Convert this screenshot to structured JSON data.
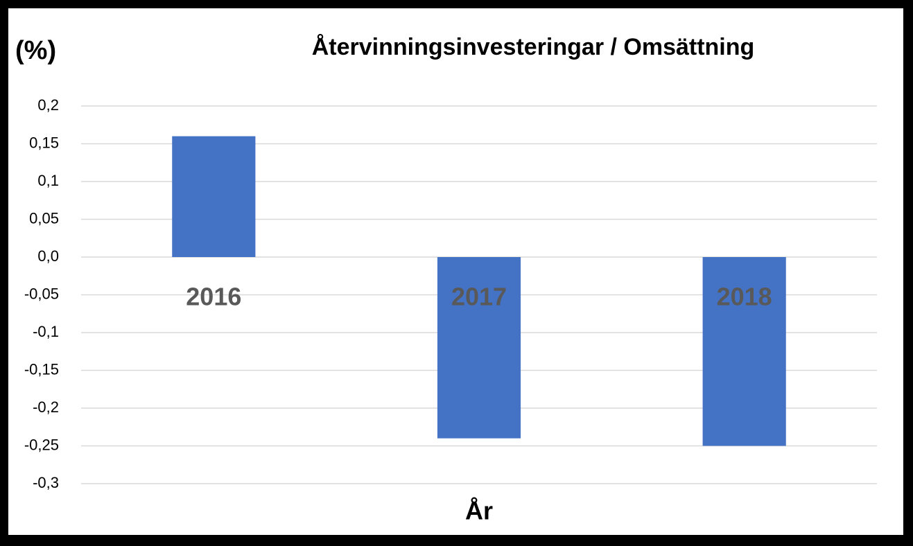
{
  "chart_data": {
    "type": "bar",
    "title": "Återvinningsinvesteringar / Omsättning",
    "y_label": "(%)",
    "x_label": "År",
    "categories": [
      "2016",
      "2017",
      "2018"
    ],
    "values": [
      0.16,
      -0.24,
      -0.25
    ],
    "color": "#4472c4",
    "ylim": [
      -0.3,
      0.2
    ],
    "yticks": [
      {
        "value": 0.2,
        "label": "0,2"
      },
      {
        "value": 0.15,
        "label": "0,15"
      },
      {
        "value": 0.1,
        "label": "0,1"
      },
      {
        "value": 0.05,
        "label": "0,05"
      },
      {
        "value": 0,
        "label": "0,0"
      },
      {
        "value": -0.05,
        "label": "-0,05"
      },
      {
        "value": -0.1,
        "label": "-0,1"
      },
      {
        "value": -0.15,
        "label": "-0,15"
      },
      {
        "value": -0.2,
        "label": "-0,2"
      },
      {
        "value": -0.25,
        "label": "-0,25"
      },
      {
        "value": -0.3,
        "label": "-0,3"
      }
    ],
    "grid": true
  }
}
